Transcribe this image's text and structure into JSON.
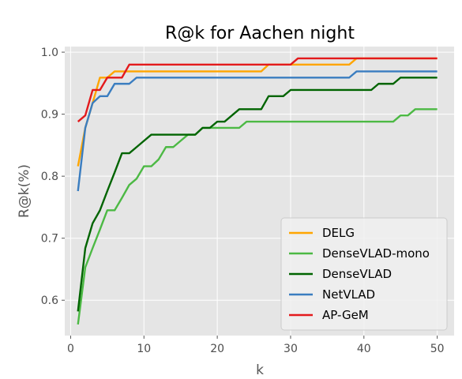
{
  "chart_data": {
    "type": "line",
    "title": "R@k for Aachen night",
    "xlabel": "k",
    "ylabel": "R@k(%)",
    "xlim": [
      -0.8,
      52.3
    ],
    "ylim": [
      0.543,
      1.009
    ],
    "xticks": [
      0,
      10,
      20,
      30,
      40,
      50
    ],
    "xtick_labels": [
      "0",
      "10",
      "20",
      "30",
      "40",
      "50"
    ],
    "yticks": [
      0.6,
      0.7,
      0.8,
      0.9,
      1.0
    ],
    "ytick_labels": [
      "0.6",
      "0.7",
      "0.8",
      "0.9",
      "1.0"
    ],
    "grid": true,
    "legend_position": "lower-right",
    "series": [
      {
        "name": "DELG",
        "color": "#ffa500",
        "points": [
          [
            1,
            0.816
          ],
          [
            2,
            0.878
          ],
          [
            3,
            0.918
          ],
          [
            4,
            0.959
          ],
          [
            5,
            0.959
          ],
          [
            6,
            0.969
          ],
          [
            7,
            0.969
          ],
          [
            8,
            0.969
          ],
          [
            26,
            0.969
          ],
          [
            27,
            0.98
          ],
          [
            38,
            0.98
          ],
          [
            39,
            0.99
          ],
          [
            50,
            0.99
          ]
        ]
      },
      {
        "name": "DenseVLAD-mono",
        "color": "#4cb944",
        "points": [
          [
            1,
            0.561
          ],
          [
            2,
            0.653
          ],
          [
            3,
            0.684
          ],
          [
            4,
            0.714
          ],
          [
            5,
            0.745
          ],
          [
            6,
            0.745
          ],
          [
            7,
            0.765
          ],
          [
            8,
            0.786
          ],
          [
            9,
            0.796
          ],
          [
            10,
            0.816
          ],
          [
            11,
            0.816
          ],
          [
            12,
            0.827
          ],
          [
            13,
            0.847
          ],
          [
            14,
            0.847
          ],
          [
            15,
            0.857
          ],
          [
            16,
            0.867
          ],
          [
            17,
            0.867
          ],
          [
            18,
            0.878
          ],
          [
            23,
            0.878
          ],
          [
            24,
            0.888
          ],
          [
            44,
            0.888
          ],
          [
            45,
            0.898
          ],
          [
            46,
            0.898
          ],
          [
            47,
            0.908
          ],
          [
            50,
            0.908
          ]
        ]
      },
      {
        "name": "DenseVLAD",
        "color": "#006400",
        "points": [
          [
            1,
            0.582
          ],
          [
            2,
            0.684
          ],
          [
            3,
            0.724
          ],
          [
            4,
            0.745
          ],
          [
            5,
            0.776
          ],
          [
            6,
            0.806
          ],
          [
            7,
            0.837
          ],
          [
            8,
            0.837
          ],
          [
            9,
            0.847
          ],
          [
            10,
            0.857
          ],
          [
            11,
            0.867
          ],
          [
            17,
            0.867
          ],
          [
            18,
            0.878
          ],
          [
            19,
            0.878
          ],
          [
            20,
            0.888
          ],
          [
            21,
            0.888
          ],
          [
            22,
            0.898
          ],
          [
            23,
            0.908
          ],
          [
            26,
            0.908
          ],
          [
            27,
            0.929
          ],
          [
            29,
            0.929
          ],
          [
            30,
            0.939
          ],
          [
            41,
            0.939
          ],
          [
            42,
            0.949
          ],
          [
            44,
            0.949
          ],
          [
            45,
            0.959
          ],
          [
            50,
            0.959
          ]
        ]
      },
      {
        "name": "NetVLAD",
        "color": "#3a7dc0",
        "points": [
          [
            1,
            0.776
          ],
          [
            2,
            0.878
          ],
          [
            3,
            0.918
          ],
          [
            4,
            0.929
          ],
          [
            5,
            0.929
          ],
          [
            6,
            0.949
          ],
          [
            8,
            0.949
          ],
          [
            9,
            0.959
          ],
          [
            38,
            0.959
          ],
          [
            39,
            0.969
          ],
          [
            50,
            0.969
          ]
        ]
      },
      {
        "name": "AP-GeM",
        "color": "#e31a1c",
        "points": [
          [
            1,
            0.888
          ],
          [
            2,
            0.898
          ],
          [
            3,
            0.939
          ],
          [
            4,
            0.939
          ],
          [
            5,
            0.959
          ],
          [
            7,
            0.959
          ],
          [
            8,
            0.98
          ],
          [
            30,
            0.98
          ],
          [
            31,
            0.99
          ],
          [
            50,
            0.99
          ]
        ]
      }
    ]
  }
}
